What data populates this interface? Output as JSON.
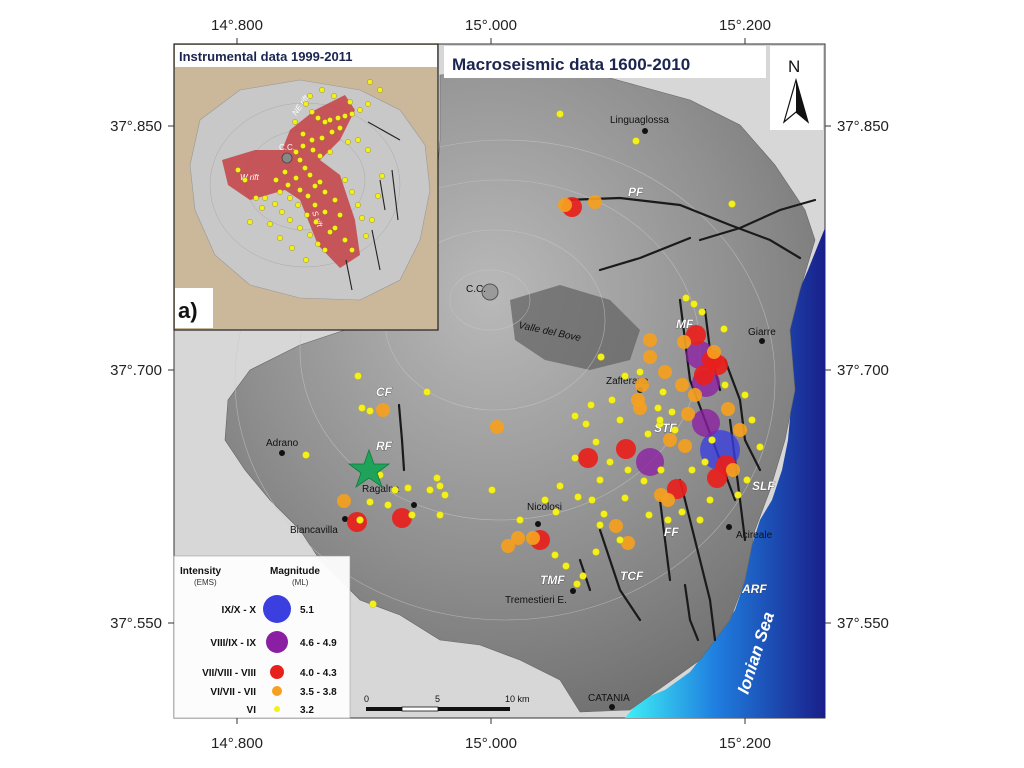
{
  "map": {
    "title": "Macroseismic data 1600-2010",
    "north_label": "N",
    "lon_ticks": [
      "14°.800",
      "15°.000",
      "15°.200"
    ],
    "lat_ticks": [
      "37°.850",
      "37°.700",
      "37°.550"
    ],
    "sea_label": "Ionian Sea",
    "epicenter_color": "#1fa35a",
    "places": {
      "linguaglossa": "Linguaglossa",
      "giarre": "Giarre",
      "zafferana": "Zafferana",
      "adrano": "Adrano",
      "ragalna": "Ragalna",
      "biancavilla": "Biancavilla",
      "nicolosi": "Nicolosi",
      "acireale": "Acireale",
      "tremestieri": "Tremestieri E.",
      "catania": "CATANIA",
      "valle_del_bove": "Valle del Bove",
      "central_crater": "C.C."
    },
    "faults": {
      "pf": "PF",
      "mf": "MF",
      "cf": "CF",
      "rf": "RF",
      "stf": "STF",
      "slf": "SLF",
      "ff": "FF",
      "tcf": "TCF",
      "tmf": "TMF",
      "arf": "ARF"
    },
    "scale": {
      "zero": "0",
      "mid": "5",
      "end": "10 km"
    }
  },
  "inset": {
    "title": "Instrumental data 1999-2011",
    "panel_label": "a)",
    "labels": {
      "cc": "C.C.",
      "ne_rift": "NE rift",
      "w_rift": "W rift",
      "s_rift": "S rift"
    }
  },
  "legend": {
    "intensity_header": "Intensity",
    "intensity_sub": "(EMS)",
    "magnitude_header": "Magnitude",
    "magnitude_sub": "(ML)",
    "classes": [
      {
        "intensity": "IX/X - X",
        "magnitude": "5.1",
        "color": "#3b3fe0"
      },
      {
        "intensity": "VIII/IX - IX",
        "magnitude": "4.6 - 4.9",
        "color": "#8a1fa3"
      },
      {
        "intensity": "VII/VIII - VIII",
        "magnitude": "4.0 - 4.3",
        "color": "#e8201c"
      },
      {
        "intensity": "VI/VII - VII",
        "magnitude": "3.5 - 3.8",
        "color": "#f5a01e"
      },
      {
        "intensity": "VI",
        "magnitude": "3.2",
        "color": "#f4f01a"
      }
    ]
  }
}
